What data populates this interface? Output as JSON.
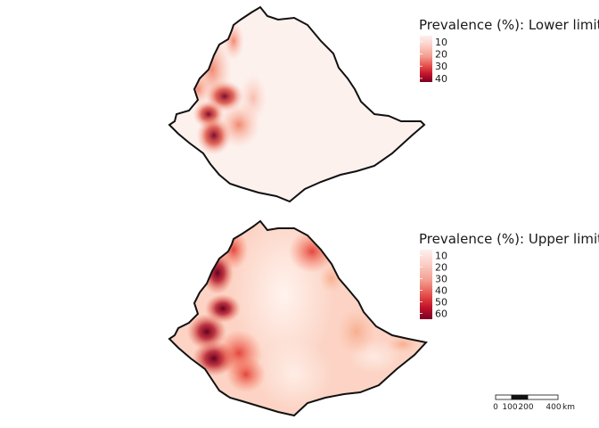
{
  "panels": [
    {
      "id": "lower",
      "legend_title": "Prevalence (%): Lower limit",
      "ticks": [
        10,
        20,
        30,
        40
      ],
      "scale": {
        "min": 5,
        "max": 43
      },
      "colors": [
        "#fdf0ee",
        "#fbd0c8",
        "#f39c8f",
        "#e5504c",
        "#c4162b",
        "#7a0026"
      ]
    },
    {
      "id": "upper",
      "legend_title": "Prevalence (%): Upper limit",
      "ticks": [
        10,
        20,
        30,
        40,
        50,
        60
      ],
      "scale": {
        "min": 5,
        "max": 65
      },
      "colors": [
        "#fdf0ee",
        "#fbd0c8",
        "#f39c8f",
        "#e5504c",
        "#c4162b",
        "#7a0026"
      ]
    }
  ],
  "scalebar": {
    "labels": [
      "0",
      "100",
      "200",
      "400"
    ],
    "unit": "km"
  }
}
